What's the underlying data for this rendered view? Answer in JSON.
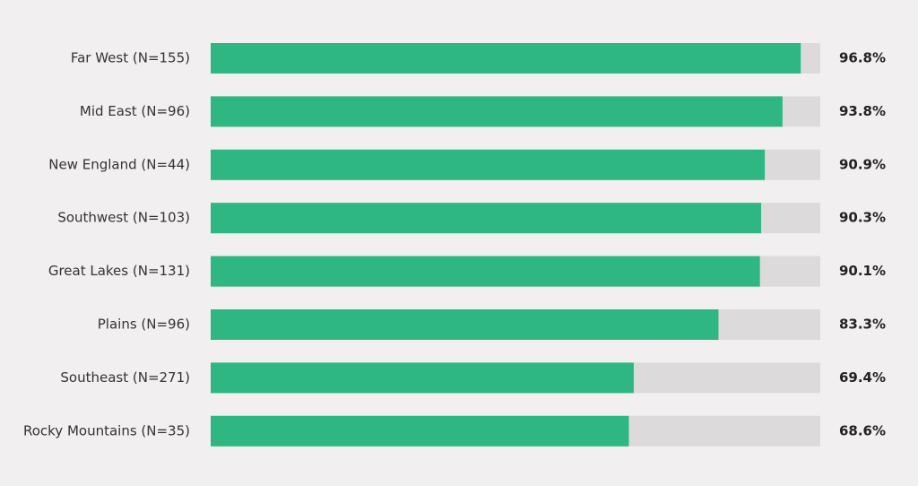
{
  "chart_data": {
    "type": "hbar",
    "categories": [
      "Far West (N=155)",
      "Mid East (N=96)",
      "New England (N=44)",
      "Southwest (N=103)",
      "Great Lakes (N=131)",
      "Plains (N=96)",
      "Southeast (N=271)",
      "Rocky Mountains (N=35)"
    ],
    "values": [
      96.8,
      93.8,
      90.9,
      90.3,
      90.1,
      83.3,
      69.4,
      68.6
    ],
    "value_labels": [
      "96.8%",
      "93.8%",
      "90.9%",
      "90.3%",
      "90.1%",
      "83.3%",
      "69.4%",
      "68.6%"
    ],
    "color": "#2fb783",
    "track_color": "#dcdadb",
    "xlim": [
      0,
      100
    ]
  }
}
